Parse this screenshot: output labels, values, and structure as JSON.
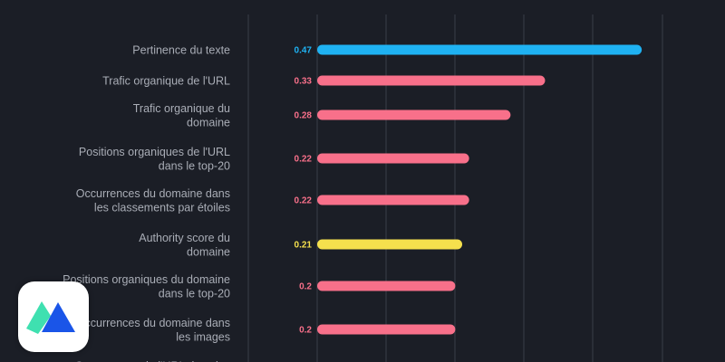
{
  "chart_data": {
    "type": "bar",
    "orientation": "horizontal",
    "categories": [
      "Pertinence du texte",
      "Trafic organique de l'URL",
      "Trafic organique du domaine",
      "Positions organiques de l'URL dans le top-20",
      "Occurrences du domaine dans les classements par étoiles",
      "Authority score du domaine",
      "Positions organiques du domaine dans le top-20",
      "Occurrences du domaine dans les images",
      "Occurrences de l'URL dans les"
    ],
    "category_lines": [
      [
        "Pertinence du texte"
      ],
      [
        "Trafic organique de l'URL"
      ],
      [
        "Trafic organique du",
        "domaine"
      ],
      [
        "Positions organiques de l'URL",
        "dans le top-20"
      ],
      [
        "Occurrences du domaine dans",
        "les classements par étoiles"
      ],
      [
        "Authority score du",
        "domaine"
      ],
      [
        "Positions organiques du domaine",
        "dans le top-20"
      ],
      [
        "Occurrences du domaine dans",
        "les images"
      ],
      [
        "Occurrences de l'URL dans les"
      ]
    ],
    "values": [
      0.47,
      0.33,
      0.28,
      0.22,
      0.22,
      0.21,
      0.2,
      0.2,
      null
    ],
    "value_labels": [
      "0.47",
      "0.33",
      "0.28",
      "0.22",
      "0.22",
      "0.21",
      "0.2",
      "0.2",
      ""
    ],
    "bar_colors": [
      "#1fb2f2",
      "#f8708a",
      "#f8708a",
      "#f8708a",
      "#f8708a",
      "#f5e04d",
      "#f8708a",
      "#f8708a",
      "#f8708a"
    ],
    "xlim": [
      0,
      0.5
    ],
    "grid": true,
    "title": "",
    "xlabel": "",
    "ylabel": ""
  },
  "colors": {
    "background": "#1b1e26",
    "gridline": "#3a3e48",
    "label_text": "#a9adb6",
    "badge_bg": "#ffffff",
    "logo_green": "#3fe0b0",
    "logo_blue": "#1a55e8"
  },
  "badge": {
    "icon": "publisher-logo-icon"
  }
}
